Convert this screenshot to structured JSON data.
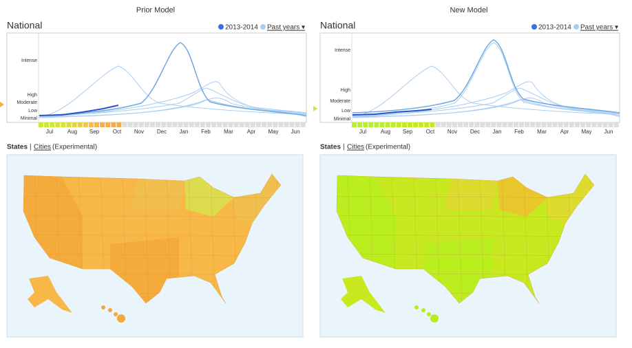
{
  "panels": [
    {
      "heading": "Prior Model",
      "title": "National",
      "legend": {
        "current": "2013-2014",
        "past": "Past years ▾"
      },
      "levels": [
        "Intense",
        "High",
        "Moderate",
        "Low",
        "Minimal"
      ],
      "months": [
        "Jul",
        "Aug",
        "Sep",
        "Oct",
        "Nov",
        "Dec",
        "Jan",
        "Feb",
        "Mar",
        "Apr",
        "May",
        "Jun"
      ],
      "tabs": {
        "states": "States",
        "separator": "|",
        "cities": "Cities",
        "note": "(Experimental)"
      }
    },
    {
      "heading": "New Model",
      "title": "National",
      "legend": {
        "current": "2013-2014",
        "past": "Past years ▾"
      },
      "levels": [
        "Intense",
        "High",
        "Moderate",
        "Low",
        "Minimal"
      ],
      "months": [
        "Jul",
        "Aug",
        "Sep",
        "Oct",
        "Nov",
        "Dec",
        "Jan",
        "Feb",
        "Mar",
        "Apr",
        "May",
        "Jun"
      ],
      "tabs": {
        "states": "States",
        "separator": "|",
        "cities": "Cities",
        "note": "(Experimental)"
      }
    }
  ]
}
